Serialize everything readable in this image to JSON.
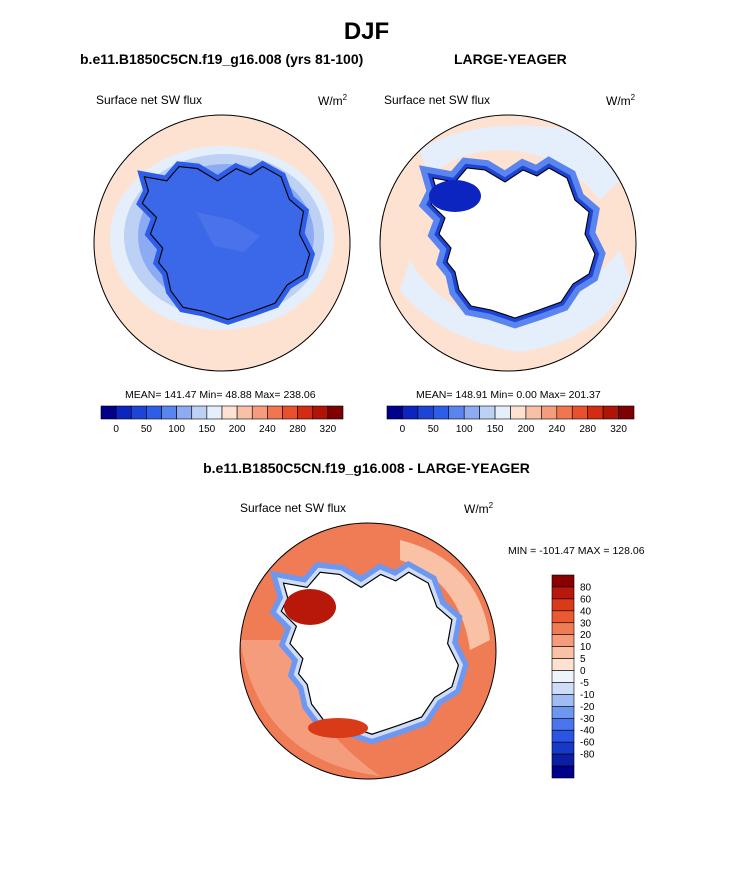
{
  "page": {
    "title": "DJF",
    "left_panel_title": "b.e11.B1850C5CN.f19_g16.008 (yrs 81-100)",
    "right_panel_title": "LARGE-YEAGER",
    "diff_panel_title": "b.e11.B1850C5CN.f19_g16.008 - LARGE-YEAGER"
  },
  "panels": {
    "left": {
      "variable": "Surface net SW flux",
      "units_base": "W/m",
      "units_exp": "2",
      "stats": "MEAN= 141.47  Min=  48.88  Max= 238.06"
    },
    "right": {
      "variable": "Surface net SW flux",
      "units_base": "W/m",
      "units_exp": "2",
      "stats": "MEAN= 148.91  Min=   0.00  Max= 201.37"
    },
    "diff": {
      "variable": "Surface net SW flux",
      "units_base": "W/m",
      "units_exp": "2",
      "stats": "MIN = -101.47 MAX = 128.06"
    }
  },
  "colors": {
    "abs_scale": [
      "#00008b",
      "#0d25c0",
      "#1e44d6",
      "#2e5ee8",
      "#5b85ee",
      "#8cabf2",
      "#bdd1f5",
      "#e5eefb",
      "#fde2d2",
      "#f8c0a6",
      "#f59c7e",
      "#f07650",
      "#e8512b",
      "#d22c12",
      "#b01408",
      "#7f0000"
    ],
    "diff_scale": [
      "#00008b",
      "#0a1ea6",
      "#1739c8",
      "#2a55e4",
      "#4a76ec",
      "#6e97f0",
      "#9fbcf5",
      "#cfdcf8",
      "#eef4fc",
      "#fde2d2",
      "#f9c1a5",
      "#f59c7c",
      "#f07c55",
      "#e95a30",
      "#d93a18",
      "#b8180a",
      "#8a0000"
    ],
    "land": "#ffffff",
    "coast": "#000000"
  },
  "chart_data": [
    {
      "type": "heatmap",
      "title": "Surface net SW flux (b.e11.B1850C5CN.f19_g16.008, yrs 81-100)",
      "units": "W/m2",
      "projection": "polar stereographic, Southern Hemisphere",
      "colorbar_ticks": [
        "0",
        "50",
        "100",
        "150",
        "200",
        "240",
        "280",
        "320"
      ],
      "levels": [
        0,
        25,
        50,
        75,
        100,
        125,
        150,
        175,
        200,
        220,
        240,
        260,
        280,
        300,
        320
      ],
      "mean": 141.47,
      "min": 48.88,
      "max": 238.06
    },
    {
      "type": "heatmap",
      "title": "Surface net SW flux (LARGE-YEAGER)",
      "units": "W/m2",
      "projection": "polar stereographic, Southern Hemisphere",
      "colorbar_ticks": [
        "0",
        "50",
        "100",
        "150",
        "200",
        "240",
        "280",
        "320"
      ],
      "levels": [
        0,
        25,
        50,
        75,
        100,
        125,
        150,
        175,
        200,
        220,
        240,
        260,
        280,
        300,
        320
      ],
      "mean": 148.91,
      "min": 0.0,
      "max": 201.37
    },
    {
      "type": "heatmap",
      "title": "Surface net SW flux (b.e11.B1850C5CN.f19_g16.008 - LARGE-YEAGER)",
      "units": "W/m2",
      "projection": "polar stereographic, Southern Hemisphere",
      "colorbar_ticks": [
        "80",
        "60",
        "40",
        "30",
        "20",
        "10",
        "5",
        "0",
        "-5",
        "-10",
        "-20",
        "-30",
        "-40",
        "-60",
        "-80"
      ],
      "min": -101.47,
      "max": 128.06
    }
  ]
}
